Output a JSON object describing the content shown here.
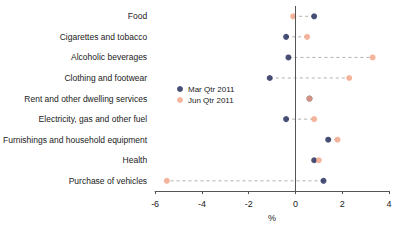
{
  "chart_data": {
    "type": "dot",
    "orientation": "horizontal",
    "categories": [
      "Food",
      "Cigarettes and tobacco",
      "Alcoholic beverages",
      "Clothing and footwear",
      "Rent and other dwelling services",
      "Electricity, gas and other fuel",
      "Furnishings and household equipment",
      "Health",
      "Purchase of vehicles"
    ],
    "series": [
      {
        "name": "Mar Qtr 2011",
        "color": "#1b2456",
        "marker": "circle",
        "values": [
          0.8,
          -0.4,
          -0.3,
          -1.1,
          0.6,
          -0.4,
          1.4,
          0.8,
          1.2
        ]
      },
      {
        "name": "Jun Qtr 2011",
        "color": "#f2a285",
        "marker": "circle",
        "values": [
          -0.1,
          0.5,
          3.3,
          2.3,
          0.6,
          0.8,
          1.8,
          1.0,
          -5.5
        ]
      }
    ],
    "x_label": "%",
    "xlim": [
      -6,
      4
    ],
    "xticks": [
      -6,
      -4,
      -2,
      0,
      2,
      4
    ],
    "legend": "left",
    "grid": false
  }
}
